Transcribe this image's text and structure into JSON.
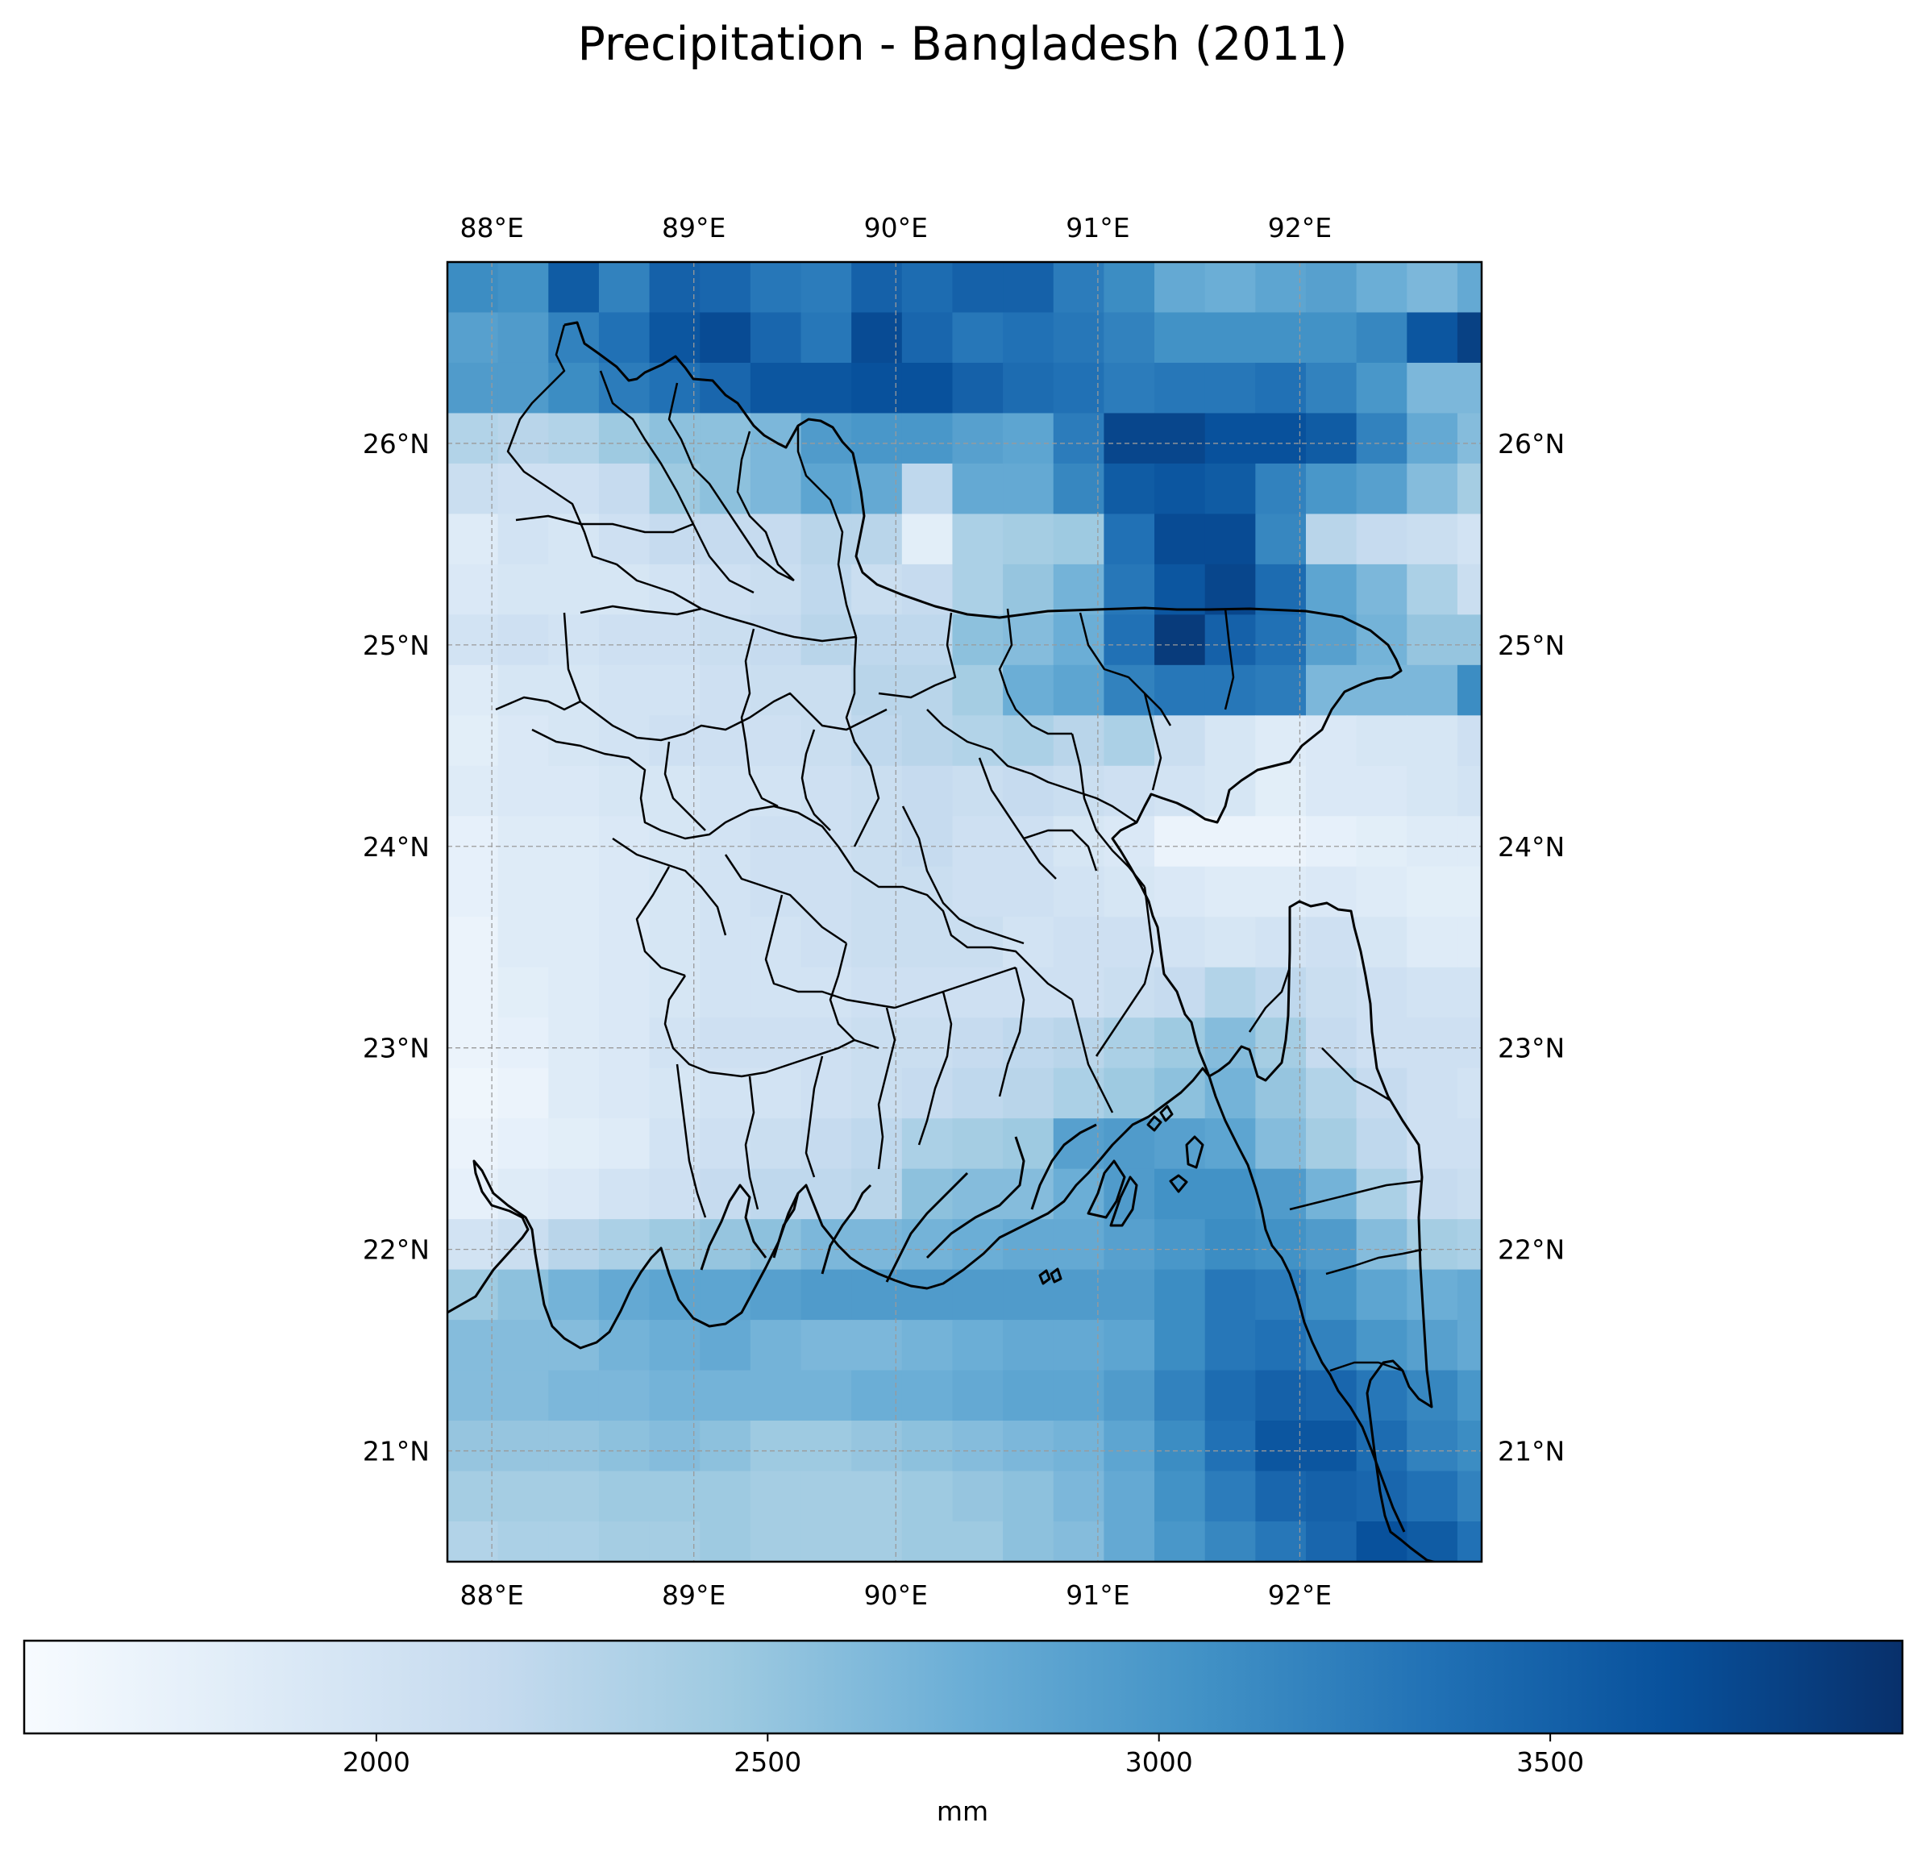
{
  "title": "Precipitation - Bangladesh (2011)",
  "map": {
    "lon_range": [
      87.78,
      92.9
    ],
    "lat_range": [
      20.45,
      26.9
    ],
    "cell_size_deg": 0.25,
    "lon_ticks": [
      {
        "value": 88,
        "label": "88°E"
      },
      {
        "value": 89,
        "label": "89°E"
      },
      {
        "value": 90,
        "label": "90°E"
      },
      {
        "value": 91,
        "label": "91°E"
      },
      {
        "value": 92,
        "label": "92°E"
      }
    ],
    "lat_ticks": [
      {
        "value": 26,
        "label": "26°N"
      },
      {
        "value": 25,
        "label": "25°N"
      },
      {
        "value": 24,
        "label": "24°N"
      },
      {
        "value": 23,
        "label": "23°N"
      },
      {
        "value": 22,
        "label": "22°N"
      },
      {
        "value": 21,
        "label": "21°N"
      }
    ],
    "gridlines": true
  },
  "colorbar": {
    "label": "mm",
    "range": [
      1550,
      3950
    ],
    "colormap": "Blues",
    "stops": [
      "#f7fbff",
      "#deebf7",
      "#c6dbef",
      "#9ecae1",
      "#6baed6",
      "#4292c6",
      "#2171b5",
      "#08519c",
      "#08306b"
    ],
    "ticks": [
      {
        "value": 2000,
        "label": "2000"
      },
      {
        "value": 2500,
        "label": "2500"
      },
      {
        "value": 3000,
        "label": "3000"
      },
      {
        "value": 3500,
        "label": "3500"
      }
    ]
  },
  "chart_data": {
    "type": "heatmap",
    "title": "Precipitation - Bangladesh (2011)",
    "xlabel": "",
    "ylabel": "",
    "colorbar_label": "mm",
    "vmin": 1550,
    "vmax": 3950,
    "lon_start": 87.78,
    "lat_start": 26.9,
    "cell_size_deg": 0.25,
    "values": [
      [
        3100,
        3050,
        3550,
        3200,
        3500,
        3450,
        3300,
        3250,
        3500,
        3400,
        3500,
        3500,
        3250,
        3100,
        2800,
        2750,
        2850,
        2900,
        2750,
        2650,
        2800
      ],
      [
        2900,
        2950,
        3200,
        3350,
        3600,
        3700,
        3450,
        3300,
        3700,
        3450,
        3300,
        3350,
        3300,
        3200,
        3050,
        3050,
        3050,
        3050,
        3150,
        3600,
        3800
      ],
      [
        2950,
        2950,
        3100,
        3250,
        3350,
        3450,
        3600,
        3600,
        3650,
        3650,
        3500,
        3400,
        3350,
        3250,
        3300,
        3300,
        3350,
        3200,
        3000,
        2650,
        2650
      ],
      [
        2300,
        2250,
        2300,
        2450,
        2550,
        2550,
        2650,
        2950,
        3000,
        3000,
        2900,
        2850,
        3250,
        3750,
        3750,
        3650,
        3650,
        3550,
        3200,
        2800,
        2600
      ],
      [
        2100,
        2050,
        2050,
        2150,
        2450,
        2550,
        2650,
        2850,
        2800,
        2200,
        2800,
        2800,
        3150,
        3550,
        3600,
        3550,
        3200,
        3000,
        2900,
        2600,
        2400
      ],
      [
        1850,
        2000,
        1950,
        2050,
        2150,
        2150,
        2150,
        2250,
        2250,
        1800,
        2350,
        2400,
        2450,
        3350,
        3700,
        3700,
        3150,
        2250,
        2150,
        2100,
        2000
      ],
      [
        1900,
        1950,
        1950,
        1950,
        2000,
        2050,
        2100,
        2200,
        2100,
        2150,
        2350,
        2500,
        2700,
        3300,
        3600,
        3750,
        3400,
        2850,
        2650,
        2350,
        2100
      ],
      [
        2000,
        2050,
        2000,
        2050,
        2050,
        2100,
        2150,
        2250,
        2200,
        2200,
        2550,
        2600,
        2750,
        3350,
        3850,
        3500,
        3350,
        2900,
        2700,
        2500,
        2500
      ],
      [
        1850,
        1950,
        1950,
        2000,
        2000,
        2050,
        2100,
        2100,
        2250,
        2250,
        2400,
        2750,
        2850,
        3200,
        3300,
        3300,
        3250,
        2650,
        2650,
        2650,
        3100
      ],
      [
        1800,
        1900,
        1950,
        2000,
        2050,
        2050,
        2050,
        2100,
        2200,
        2250,
        2300,
        2350,
        2250,
        2350,
        2100,
        1950,
        1850,
        1900,
        1950,
        1950,
        2050
      ],
      [
        1850,
        1900,
        1900,
        1950,
        1950,
        2000,
        2000,
        2050,
        2100,
        2150,
        2100,
        2150,
        2100,
        2050,
        2000,
        1950,
        1800,
        1900,
        1900,
        1950,
        2000
      ],
      [
        1750,
        1850,
        1850,
        1900,
        1950,
        2000,
        2050,
        2050,
        2100,
        2150,
        2050,
        2050,
        1950,
        1900,
        1700,
        1700,
        1700,
        1750,
        1800,
        1850,
        1850
      ],
      [
        1750,
        1850,
        1850,
        1900,
        1950,
        2000,
        2050,
        2050,
        2100,
        2100,
        2050,
        2050,
        2000,
        1950,
        1900,
        1850,
        1850,
        1900,
        1850,
        1800,
        1800
      ],
      [
        1700,
        1850,
        1850,
        1900,
        1950,
        2000,
        2000,
        2050,
        2100,
        2100,
        2100,
        2000,
        2050,
        2050,
        2000,
        1950,
        2000,
        2050,
        1950,
        1850,
        1850
      ],
      [
        1700,
        1800,
        1850,
        1900,
        1950,
        2000,
        2000,
        2000,
        2050,
        2050,
        2050,
        2050,
        2050,
        2100,
        2150,
        2300,
        2200,
        2100,
        2050,
        2000,
        2000
      ],
      [
        1700,
        1750,
        1850,
        1900,
        2000,
        2050,
        2050,
        2050,
        2100,
        2100,
        2150,
        2200,
        2250,
        2350,
        2450,
        2600,
        2400,
        2150,
        2050,
        2050,
        2050
      ],
      [
        1650,
        1700,
        1850,
        1900,
        1950,
        2000,
        2000,
        2050,
        2100,
        2150,
        2200,
        2250,
        2350,
        2450,
        2550,
        2700,
        2500,
        2300,
        2150,
        2050,
        2000
      ],
      [
        1700,
        1750,
        1800,
        1850,
        2000,
        2050,
        2100,
        2150,
        2200,
        2350,
        2400,
        2450,
        2900,
        2950,
        2900,
        2850,
        2600,
        2400,
        2200,
        2050,
        2050
      ],
      [
        1750,
        1850,
        1900,
        2000,
        2050,
        2150,
        2200,
        2200,
        2250,
        2550,
        2600,
        2600,
        2750,
        2950,
        3050,
        3050,
        2950,
        2700,
        2350,
        2150,
        2100
      ],
      [
        2000,
        2100,
        2250,
        2350,
        2450,
        2500,
        2550,
        2650,
        2650,
        2700,
        2750,
        2800,
        2800,
        2900,
        3000,
        3100,
        3050,
        2950,
        2600,
        2400,
        2350
      ],
      [
        2450,
        2550,
        2700,
        2800,
        2850,
        2850,
        2900,
        2950,
        2950,
        2950,
        2950,
        2950,
        2950,
        2950,
        3100,
        3300,
        3250,
        3050,
        2850,
        2750,
        2800
      ],
      [
        2600,
        2600,
        2600,
        2700,
        2750,
        2800,
        2700,
        2650,
        2650,
        2700,
        2750,
        2800,
        2800,
        2850,
        3100,
        3300,
        3350,
        3200,
        3000,
        2900,
        2800
      ],
      [
        2600,
        2600,
        2650,
        2650,
        2700,
        2700,
        2700,
        2700,
        2750,
        2750,
        2800,
        2850,
        2850,
        2950,
        3200,
        3400,
        3500,
        3450,
        3300,
        3150,
        3000
      ],
      [
        2500,
        2500,
        2500,
        2550,
        2600,
        2550,
        2450,
        2450,
        2500,
        2550,
        2600,
        2650,
        2700,
        2850,
        3100,
        3350,
        3600,
        3600,
        3400,
        3200,
        3100
      ],
      [
        2400,
        2400,
        2400,
        2450,
        2450,
        2450,
        2400,
        2400,
        2400,
        2450,
        2500,
        2550,
        2650,
        2800,
        3050,
        3250,
        3450,
        3500,
        3450,
        3350,
        3200
      ],
      [
        2300,
        2350,
        2350,
        2400,
        2400,
        2450,
        2400,
        2400,
        2400,
        2450,
        2450,
        2550,
        2600,
        2800,
        3000,
        3150,
        3300,
        3450,
        3650,
        3550,
        3350
      ]
    ]
  }
}
